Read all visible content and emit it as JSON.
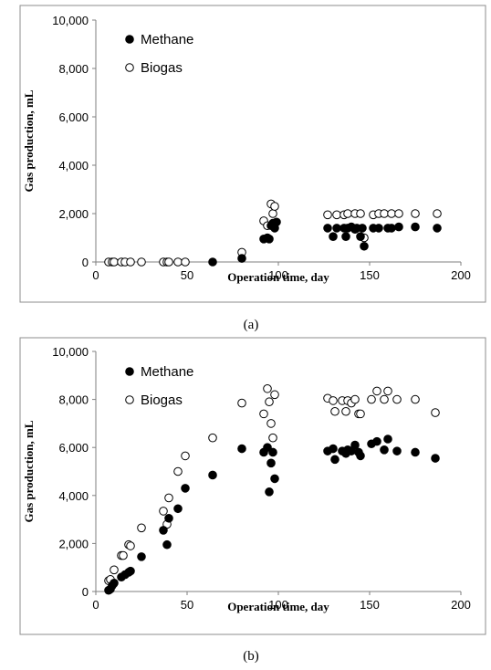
{
  "chart_data": [
    {
      "type": "scatter",
      "panel_label": "(a)",
      "xlabel": "Operation time, day",
      "ylabel": "Gas production, mL",
      "xlim": [
        0,
        200
      ],
      "ylim": [
        0,
        10000
      ],
      "x_ticks": [
        0,
        50,
        100,
        150,
        200
      ],
      "y_ticks": [
        0,
        2000,
        4000,
        6000,
        8000,
        10000
      ],
      "x_tick_labels": [
        "0",
        "50",
        "100",
        "150",
        "200"
      ],
      "y_tick_labels": [
        "0",
        "2,000",
        "4,000",
        "6,000",
        "8,000",
        "10,000"
      ],
      "grid": false,
      "legend_position": "top-left",
      "series": [
        {
          "name": "Methane",
          "marker": "filled-circle",
          "points": [
            [
              64,
              0
            ],
            [
              80,
              150
            ],
            [
              92,
              950
            ],
            [
              94,
              1000
            ],
            [
              95,
              950
            ],
            [
              96,
              1500
            ],
            [
              97,
              1600
            ],
            [
              98,
              1400
            ],
            [
              99,
              1650
            ],
            [
              127,
              1400
            ],
            [
              130,
              1050
            ],
            [
              132,
              1400
            ],
            [
              136,
              1400
            ],
            [
              137,
              1050
            ],
            [
              138,
              1400
            ],
            [
              140,
              1450
            ],
            [
              142,
              1350
            ],
            [
              143,
              1400
            ],
            [
              145,
              1050
            ],
            [
              146,
              1400
            ],
            [
              147,
              650
            ],
            [
              152,
              1400
            ],
            [
              155,
              1400
            ],
            [
              160,
              1400
            ],
            [
              162,
              1400
            ],
            [
              166,
              1450
            ],
            [
              175,
              1450
            ],
            [
              187,
              1400
            ]
          ]
        },
        {
          "name": "Biogas",
          "marker": "open-circle",
          "points": [
            [
              7,
              0
            ],
            [
              9,
              0
            ],
            [
              10,
              0
            ],
            [
              14,
              0
            ],
            [
              16,
              0
            ],
            [
              19,
              0
            ],
            [
              25,
              0
            ],
            [
              37,
              0
            ],
            [
              39,
              0
            ],
            [
              40,
              0
            ],
            [
              45,
              0
            ],
            [
              49,
              0
            ],
            [
              80,
              400
            ],
            [
              92,
              1700
            ],
            [
              94,
              1500
            ],
            [
              96,
              2400
            ],
            [
              97,
              2000
            ],
            [
              98,
              2300
            ],
            [
              127,
              1950
            ],
            [
              132,
              1950
            ],
            [
              136,
              1950
            ],
            [
              138,
              2000
            ],
            [
              142,
              2000
            ],
            [
              145,
              2000
            ],
            [
              147,
              1000
            ],
            [
              152,
              1950
            ],
            [
              155,
              2000
            ],
            [
              158,
              2000
            ],
            [
              162,
              2000
            ],
            [
              166,
              2000
            ],
            [
              175,
              2000
            ],
            [
              187,
              2000
            ]
          ]
        }
      ]
    },
    {
      "type": "scatter",
      "panel_label": "(b)",
      "xlabel": "Operation time, day",
      "ylabel": "Gas production, mL",
      "xlim": [
        0,
        200
      ],
      "ylim": [
        0,
        10000
      ],
      "x_ticks": [
        0,
        50,
        100,
        150,
        200
      ],
      "y_ticks": [
        0,
        2000,
        4000,
        6000,
        8000,
        10000
      ],
      "x_tick_labels": [
        "0",
        "50",
        "100",
        "150",
        "200"
      ],
      "y_tick_labels": [
        "0",
        "2,000",
        "4,000",
        "6,000",
        "8,000",
        "10,000"
      ],
      "grid": false,
      "legend_position": "top-left",
      "series": [
        {
          "name": "Methane",
          "marker": "filled-circle",
          "points": [
            [
              7,
              50
            ],
            [
              8,
              100
            ],
            [
              9,
              250
            ],
            [
              10,
              350
            ],
            [
              14,
              600
            ],
            [
              16,
              700
            ],
            [
              18,
              800
            ],
            [
              19,
              850
            ],
            [
              25,
              1450
            ],
            [
              37,
              2550
            ],
            [
              39,
              1950
            ],
            [
              40,
              3050
            ],
            [
              45,
              3450
            ],
            [
              49,
              4300
            ],
            [
              64,
              4850
            ],
            [
              80,
              5950
            ],
            [
              92,
              5800
            ],
            [
              94,
              6000
            ],
            [
              95,
              4150
            ],
            [
              96,
              5350
            ],
            [
              97,
              5800
            ],
            [
              98,
              4700
            ],
            [
              127,
              5850
            ],
            [
              130,
              5950
            ],
            [
              131,
              5500
            ],
            [
              135,
              5850
            ],
            [
              137,
              5750
            ],
            [
              138,
              5900
            ],
            [
              140,
              5850
            ],
            [
              142,
              6100
            ],
            [
              144,
              5800
            ],
            [
              145,
              5650
            ],
            [
              151,
              6150
            ],
            [
              154,
              6250
            ],
            [
              158,
              5900
            ],
            [
              160,
              6350
            ],
            [
              165,
              5850
            ],
            [
              175,
              5800
            ],
            [
              186,
              5550
            ]
          ]
        },
        {
          "name": "Biogas",
          "marker": "open-circle",
          "points": [
            [
              7,
              450
            ],
            [
              8,
              500
            ],
            [
              10,
              900
            ],
            [
              14,
              1500
            ],
            [
              15,
              1500
            ],
            [
              18,
              1950
            ],
            [
              19,
              1900
            ],
            [
              25,
              2650
            ],
            [
              37,
              3350
            ],
            [
              39,
              2800
            ],
            [
              40,
              3900
            ],
            [
              45,
              5000
            ],
            [
              49,
              5650
            ],
            [
              64,
              6400
            ],
            [
              80,
              7850
            ],
            [
              92,
              7400
            ],
            [
              94,
              8450
            ],
            [
              95,
              7900
            ],
            [
              96,
              7000
            ],
            [
              97,
              6400
            ],
            [
              98,
              8200
            ],
            [
              127,
              8050
            ],
            [
              130,
              7950
            ],
            [
              131,
              7500
            ],
            [
              135,
              7950
            ],
            [
              137,
              7500
            ],
            [
              138,
              7950
            ],
            [
              140,
              7850
            ],
            [
              142,
              8000
            ],
            [
              144,
              7400
            ],
            [
              145,
              7400
            ],
            [
              151,
              8000
            ],
            [
              154,
              8350
            ],
            [
              158,
              8000
            ],
            [
              160,
              8350
            ],
            [
              165,
              8000
            ],
            [
              175,
              8000
            ],
            [
              186,
              7450
            ]
          ]
        }
      ]
    }
  ]
}
